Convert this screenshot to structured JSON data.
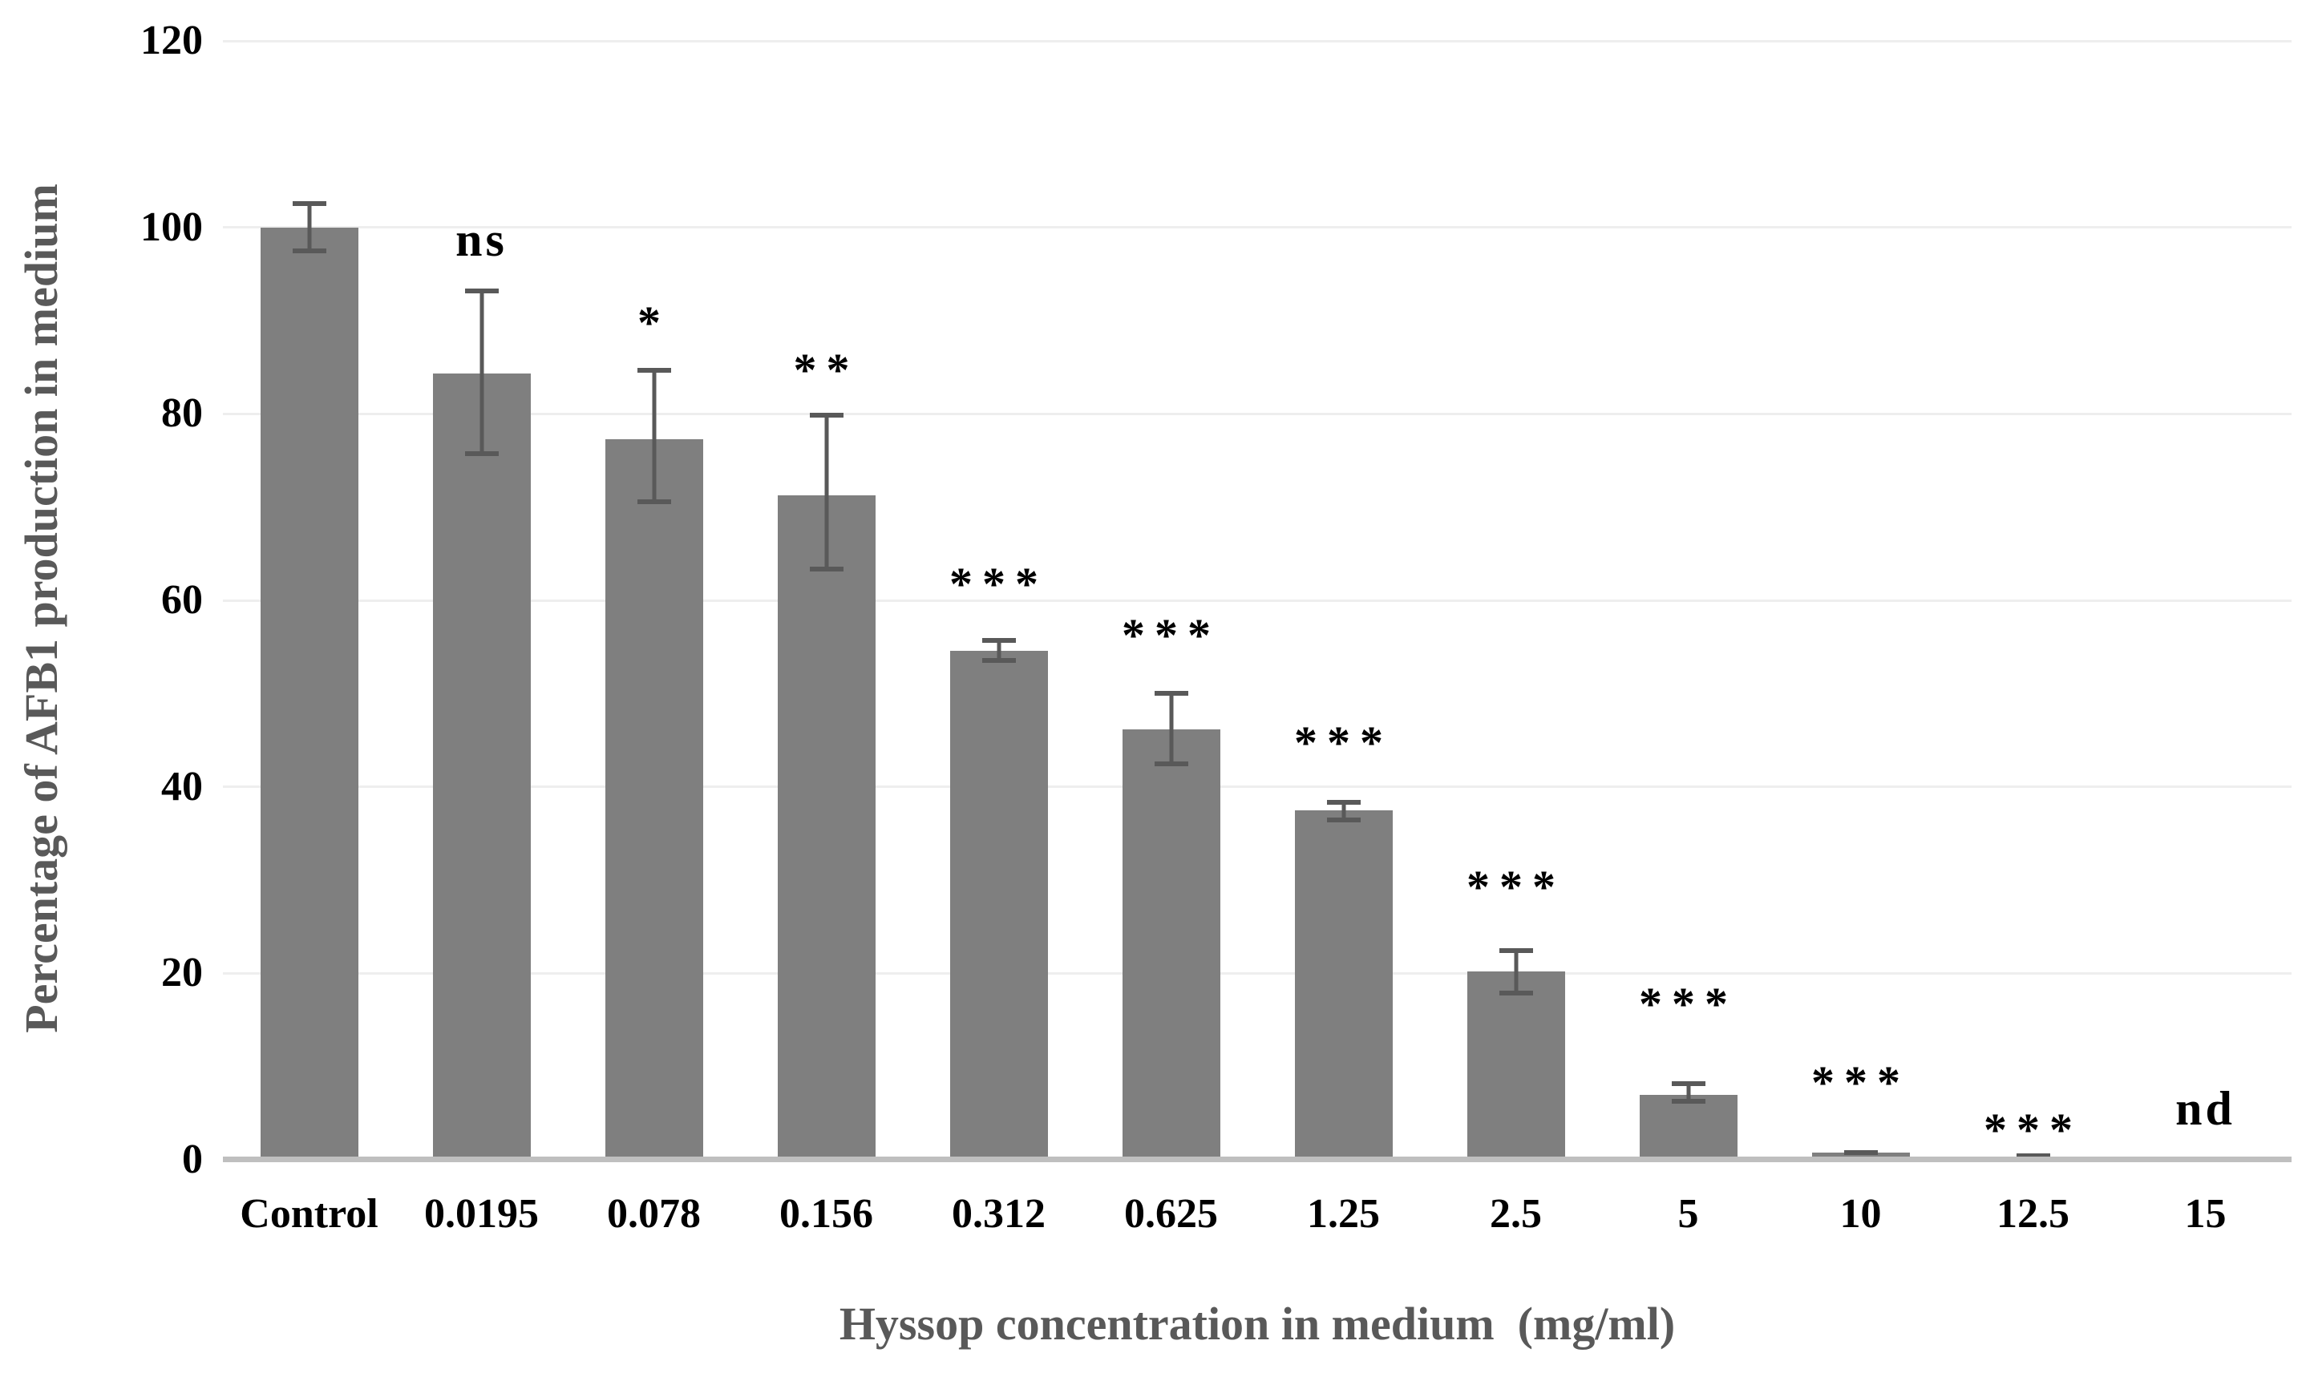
{
  "chart_data": {
    "type": "bar",
    "title": "",
    "xlabel": "Hyssop concentration in medium  (mg/ml)",
    "ylabel": "Percentage of AFB1 production in medium",
    "ylim": [
      0,
      120
    ],
    "yticks": [
      0,
      20,
      40,
      60,
      80,
      100,
      120
    ],
    "grid": true,
    "legend": "none",
    "colors": {
      "bar_fill": "#7f7f7f",
      "error_bar": "#595959",
      "gridline": "#eeeeee",
      "axis_baseline": "#bfbfbf",
      "tick_label": "#000000",
      "axis_title": "#595959"
    },
    "categories": [
      "Control",
      "0.0195",
      "0.078",
      "0.156",
      "0.312",
      "0.625",
      "1.25",
      "2.5",
      "5",
      "10",
      "12.5",
      "15"
    ],
    "series": [
      {
        "name": "Percentage of AFB1 production in medium",
        "values": [
          100,
          84.3,
          77.3,
          71.3,
          54.6,
          46.2,
          37.5,
          20.2,
          7,
          0.8,
          0.35,
          0
        ],
        "error_up": [
          2.8,
          9.1,
          7.6,
          8.8,
          1.4,
          4.1,
          1.1,
          2.5,
          1.4,
          0.25,
          0.15,
          0
        ],
        "error_down": [
          2.8,
          8.8,
          7.0,
          8.2,
          1.3,
          4.0,
          1.3,
          2.6,
          1.0,
          0.25,
          0.15,
          0
        ]
      }
    ],
    "annotations": [
      {
        "category": "Control",
        "label": "",
        "y": null
      },
      {
        "category": "0.0195",
        "label": "ns",
        "y": 98.5
      },
      {
        "category": "0.078",
        "label": "*",
        "y": 91
      },
      {
        "category": "0.156",
        "label": "**",
        "y": 86
      },
      {
        "category": "0.312",
        "label": "***",
        "y": 63
      },
      {
        "category": "0.625",
        "label": "***",
        "y": 57.5
      },
      {
        "category": "1.25",
        "label": "***",
        "y": 46
      },
      {
        "category": "2.5",
        "label": "***",
        "y": 30.5
      },
      {
        "category": "5",
        "label": "***",
        "y": 18
      },
      {
        "category": "10",
        "label": "***",
        "y": 9.5
      },
      {
        "category": "12.5",
        "label": "***",
        "y": 4.5
      },
      {
        "category": "15",
        "label": "nd",
        "y": 5.3
      }
    ]
  }
}
